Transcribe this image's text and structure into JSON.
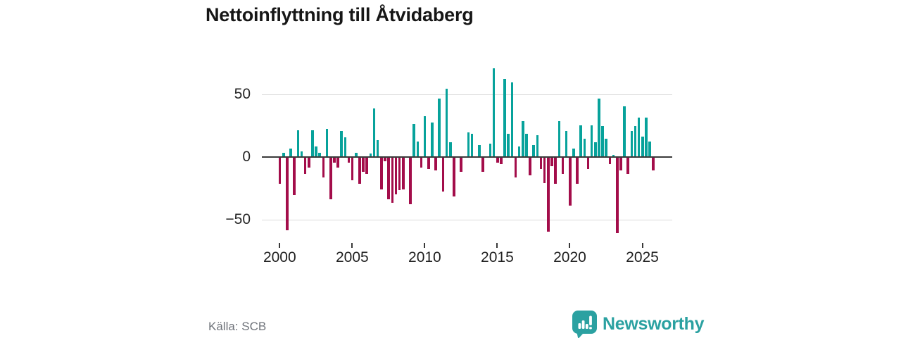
{
  "title": "Nettoinflyttning till Åtvidaberg",
  "source": "Källa: SCB",
  "brand": {
    "name": "Newsworthy",
    "color": "#2ba1a1",
    "icon": "speech-bubble-bar-chart-icon"
  },
  "y_axis": {
    "ticks": [
      50,
      0,
      -50
    ],
    "labels": [
      "50",
      "0",
      "−50"
    ]
  },
  "x_axis": {
    "ticks": [
      "2000",
      "2005",
      "2010",
      "2015",
      "2020",
      "2025"
    ],
    "years": [
      2000,
      2005,
      2010,
      2015,
      2020,
      2025
    ]
  },
  "chart_data": {
    "type": "bar",
    "title": "Nettoinflyttning till Åtvidaberg",
    "frequency": "quarterly",
    "x_start": "2000 Q1",
    "x_end": "2025 Q4",
    "ylim": [
      -65,
      75
    ],
    "yticks": [
      50,
      0,
      -50
    ],
    "grid": "horizontal",
    "positive_color": "#07a29b",
    "negative_color": "#a30d4a",
    "categories": [
      "2000 Q1",
      "2000 Q2",
      "2000 Q3",
      "2000 Q4",
      "2001 Q1",
      "2001 Q2",
      "2001 Q3",
      "2001 Q4",
      "2002 Q1",
      "2002 Q2",
      "2002 Q3",
      "2002 Q4",
      "2003 Q1",
      "2003 Q2",
      "2003 Q3",
      "2003 Q4",
      "2004 Q1",
      "2004 Q2",
      "2004 Q3",
      "2004 Q4",
      "2005 Q1",
      "2005 Q2",
      "2005 Q3",
      "2005 Q4",
      "2006 Q1",
      "2006 Q2",
      "2006 Q3",
      "2006 Q4",
      "2007 Q1",
      "2007 Q2",
      "2007 Q3",
      "2007 Q4",
      "2008 Q1",
      "2008 Q2",
      "2008 Q3",
      "2008 Q4",
      "2009 Q1",
      "2009 Q2",
      "2009 Q3",
      "2009 Q4",
      "2010 Q1",
      "2010 Q2",
      "2010 Q3",
      "2010 Q4",
      "2011 Q1",
      "2011 Q2",
      "2011 Q3",
      "2011 Q4",
      "2012 Q1",
      "2012 Q2",
      "2012 Q3",
      "2012 Q4",
      "2013 Q1",
      "2013 Q2",
      "2013 Q3",
      "2013 Q4",
      "2014 Q1",
      "2014 Q2",
      "2014 Q3",
      "2014 Q4",
      "2015 Q1",
      "2015 Q2",
      "2015 Q3",
      "2015 Q4",
      "2016 Q1",
      "2016 Q2",
      "2016 Q3",
      "2016 Q4",
      "2017 Q1",
      "2017 Q2",
      "2017 Q3",
      "2017 Q4",
      "2018 Q1",
      "2018 Q2",
      "2018 Q3",
      "2018 Q4",
      "2019 Q1",
      "2019 Q2",
      "2019 Q3",
      "2019 Q4",
      "2020 Q1",
      "2020 Q2",
      "2020 Q3",
      "2020 Q4",
      "2021 Q1",
      "2021 Q2",
      "2021 Q3",
      "2021 Q4",
      "2022 Q1",
      "2022 Q2",
      "2022 Q3",
      "2022 Q4",
      "2023 Q1",
      "2023 Q2",
      "2023 Q3",
      "2023 Q4",
      "2024 Q1",
      "2024 Q2",
      "2024 Q3",
      "2024 Q4",
      "2025 Q1",
      "2025 Q2",
      "2025 Q3",
      "2025 Q4"
    ],
    "values": [
      -21,
      3,
      -58,
      6,
      -30,
      21,
      4,
      -13,
      -8,
      21,
      8,
      3,
      -16,
      22,
      -33,
      -4,
      -8,
      20,
      15,
      -4,
      -18,
      3,
      -21,
      -11,
      -13,
      2,
      38,
      13,
      -25,
      -3,
      -33,
      -36,
      -29,
      -26,
      -25,
      0,
      -37,
      26,
      12,
      -8,
      32,
      -9,
      27,
      -10,
      46,
      -27,
      54,
      11,
      -31,
      0,
      -11,
      0,
      19,
      18,
      0,
      9,
      -11,
      0,
      10,
      70,
      -4,
      -5,
      62,
      18,
      59,
      -16,
      8,
      28,
      18,
      -14,
      9,
      17,
      -9,
      -20,
      -59,
      -7,
      -21,
      28,
      -13,
      20,
      -38,
      6,
      -21,
      25,
      14,
      -9,
      25,
      11,
      46,
      24,
      14,
      -5,
      1,
      -60,
      -10,
      40,
      -13,
      20,
      24,
      31,
      16,
      31,
      12,
      -10
    ]
  }
}
